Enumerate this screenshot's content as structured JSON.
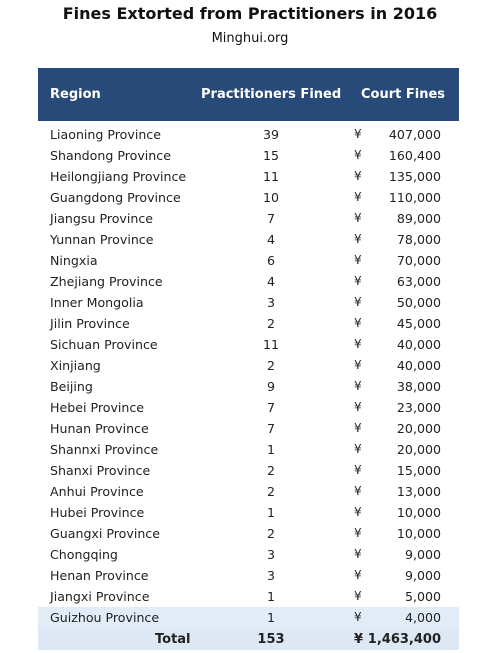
{
  "title": "Fines Extorted from Practitioners in 2016",
  "source": "Minghui.org",
  "columns": {
    "region": "Region",
    "practitioners": "Practitioners Fined",
    "fines": "Court Fines"
  },
  "currency_symbol": "¥",
  "rows": [
    {
      "region": "Liaoning Province",
      "count": "39",
      "fine": "407,000"
    },
    {
      "region": "Shandong Province",
      "count": "15",
      "fine": "160,400"
    },
    {
      "region": "Heilongjiang Province",
      "count": "11",
      "fine": "135,000"
    },
    {
      "region": "Guangdong Province",
      "count": "10",
      "fine": "110,000"
    },
    {
      "region": "Jiangsu Province",
      "count": "7",
      "fine": "89,000"
    },
    {
      "region": "Yunnan Province",
      "count": "4",
      "fine": "78,000"
    },
    {
      "region": "Ningxia",
      "count": "6",
      "fine": "70,000"
    },
    {
      "region": "Zhejiang Province",
      "count": "4",
      "fine": "63,000"
    },
    {
      "region": "Inner Mongolia",
      "count": "3",
      "fine": "50,000"
    },
    {
      "region": "Jilin Province",
      "count": "2",
      "fine": "45,000"
    },
    {
      "region": "Sichuan Province",
      "count": "11",
      "fine": "40,000"
    },
    {
      "region": "Xinjiang",
      "count": "2",
      "fine": "40,000"
    },
    {
      "region": "Beijing",
      "count": "9",
      "fine": "38,000"
    },
    {
      "region": "Hebei Province",
      "count": "7",
      "fine": "23,000"
    },
    {
      "region": "Hunan Province",
      "count": "7",
      "fine": "20,000"
    },
    {
      "region": "Shannxi Province",
      "count": "1",
      "fine": "20,000"
    },
    {
      "region": "Shanxi Province",
      "count": "2",
      "fine": "15,000"
    },
    {
      "region": "Anhui Province",
      "count": "2",
      "fine": "13,000"
    },
    {
      "region": "Hubei Province",
      "count": "1",
      "fine": "10,000"
    },
    {
      "region": "Guangxi Province",
      "count": "2",
      "fine": "10,000"
    },
    {
      "region": "Chongqing",
      "count": "3",
      "fine": "9,000"
    },
    {
      "region": "Henan Province",
      "count": "3",
      "fine": "9,000"
    },
    {
      "region": "Jiangxi Province",
      "count": "1",
      "fine": "5,000"
    },
    {
      "region": "Guizhou Province",
      "count": "1",
      "fine": "4,000"
    }
  ],
  "total": {
    "label": "Total",
    "count": "153",
    "fine": "1,463,400"
  },
  "colors": {
    "header_bg": "#274a79",
    "shade_bg": "#e2ecf7",
    "total_bg": "#dde8f4"
  }
}
